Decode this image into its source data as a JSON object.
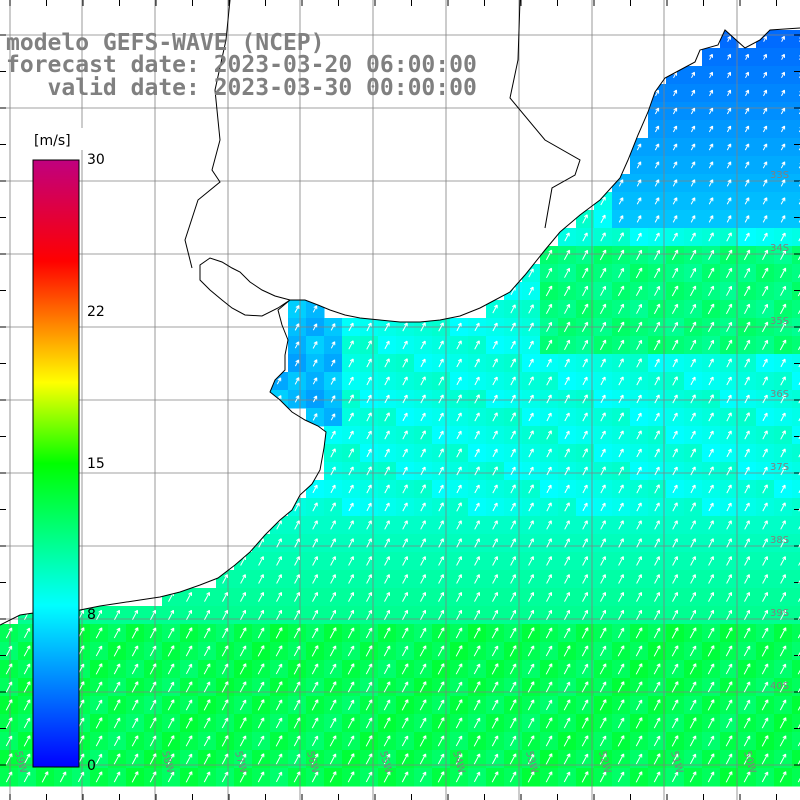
{
  "title": {
    "line1": "modelo GEFS-WAVE (NCEP)",
    "line2": "forecast date: 2023-03-20 06:00:00",
    "line3": "   valid date: 2023-03-30 00:00:00"
  },
  "colorbar": {
    "unit": "[m/s]",
    "tick_values": [
      30,
      22,
      15,
      8,
      0
    ],
    "vmin": 0,
    "vmax": 30,
    "stops": [
      {
        "v": 0,
        "color": "#0000ff"
      },
      {
        "v": 8,
        "color": "#00ffff"
      },
      {
        "v": 15,
        "color": "#00ff00"
      },
      {
        "v": 19,
        "color": "#ffff00"
      },
      {
        "v": 22,
        "color": "#ff8000"
      },
      {
        "v": 25,
        "color": "#ff0000"
      },
      {
        "v": 30,
        "color": "#c0007f"
      }
    ]
  },
  "grid": {
    "lon_labels": [
      "59W",
      "58W",
      "57W",
      "56W",
      "55W",
      "54W",
      "53W",
      "52W",
      "51W",
      "50W"
    ],
    "lat_labels": [
      "33S",
      "34S",
      "35S",
      "36S",
      "37S",
      "38S",
      "39S",
      "40S"
    ]
  },
  "colors": {
    "land": "#ffffff",
    "grid": "#808080",
    "coast": "#000000",
    "arrows": "#ffffff",
    "text": "#808080"
  },
  "chart_data": {
    "type": "heatmap",
    "variable": "wind speed with direction vectors",
    "unit": "m/s",
    "color_range": [
      0,
      30
    ],
    "speed_regions_mps": {
      "north_east_offshore": 3,
      "coastal_near_shore": 7,
      "central_offshore": 10,
      "southern_band": 12
    },
    "prevailing_direction": "south-southwest wind blowing toward north-northeast"
  }
}
